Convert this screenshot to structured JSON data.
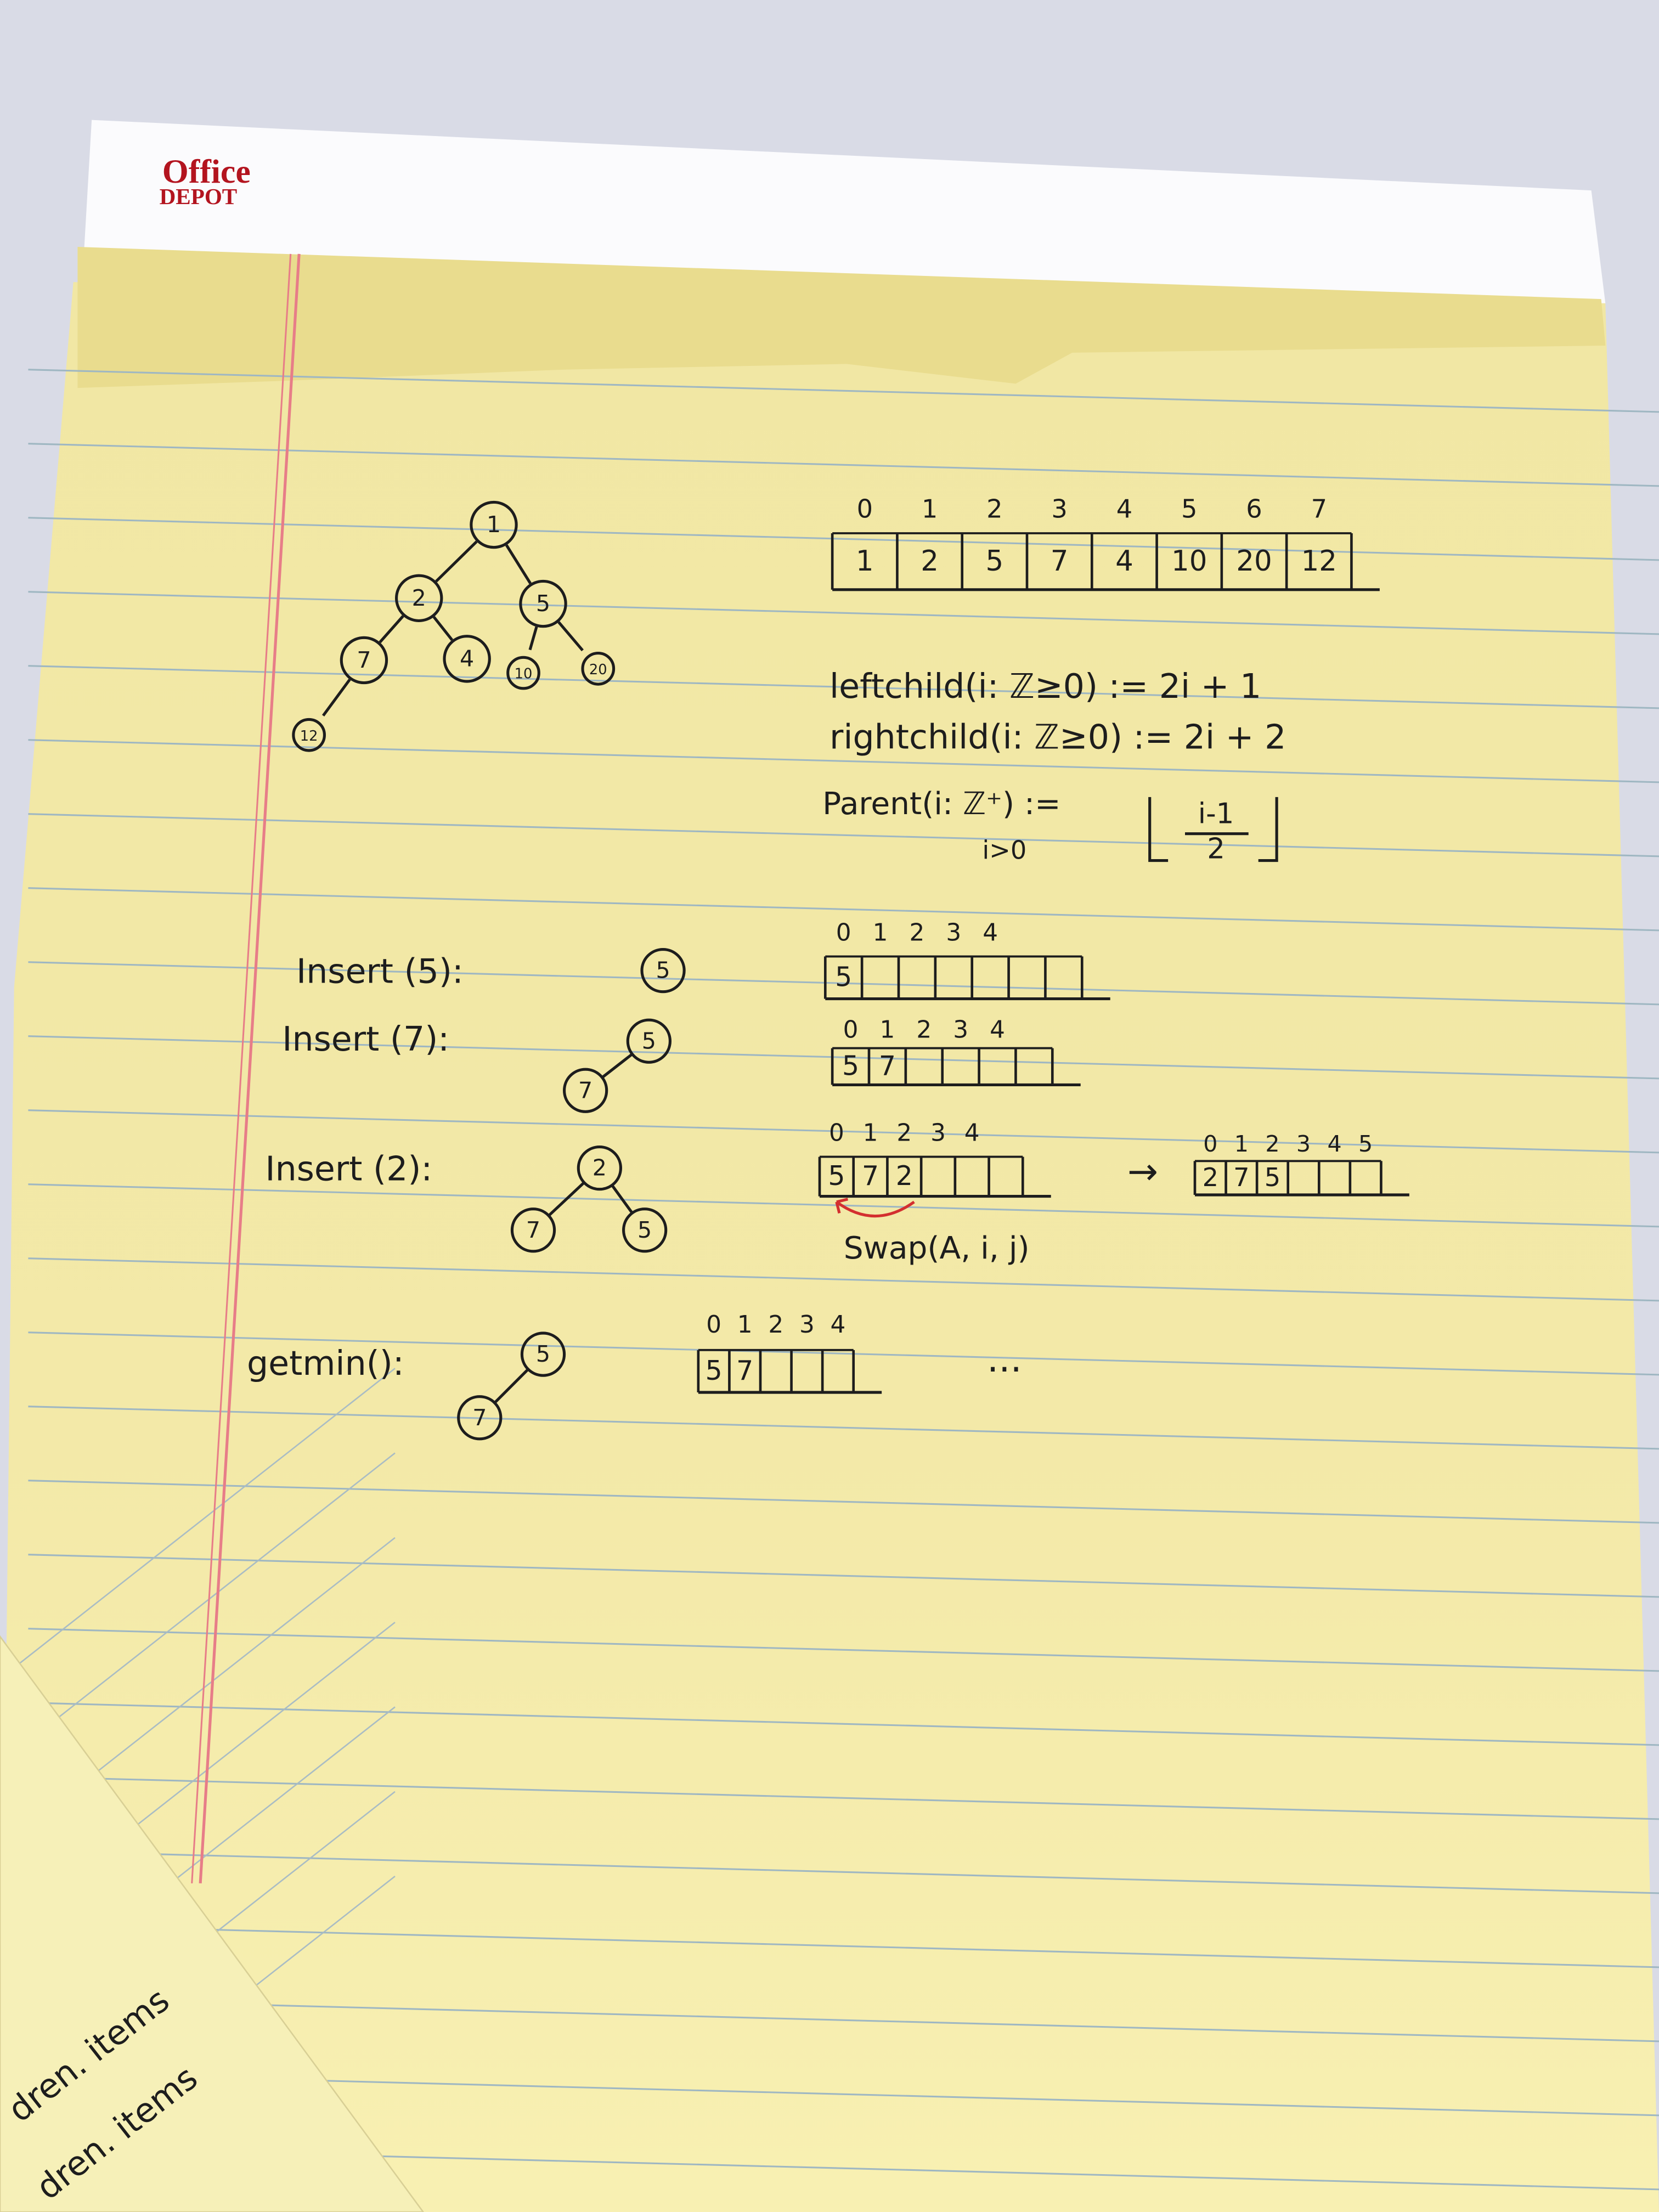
{
  "brand": {
    "line1": "Office",
    "line2": "DEPOT"
  },
  "tree": {
    "nodes": [
      "1",
      "2",
      "5",
      "7",
      "4",
      "10",
      "20",
      "12"
    ]
  },
  "array": {
    "indices": [
      "0",
      "1",
      "2",
      "3",
      "4",
      "5",
      "6",
      "7"
    ],
    "cells": [
      "1",
      "2",
      "5",
      "7",
      "4",
      "10",
      "20",
      "12"
    ]
  },
  "formulas": {
    "left": "leftchild(i: ℤ≥0) := 2i + 1",
    "right": "rightchild(i: ℤ≥0) := 2i + 2",
    "parent": "Parent(i: ℤ⁺) :=",
    "condition": "i>0",
    "numerator": "i-1",
    "denominator": "2"
  },
  "steps": [
    {
      "label": "Insert (5):",
      "nodes": [
        "5"
      ],
      "indices": [
        "0",
        "1",
        "2",
        "3",
        "4"
      ],
      "cells": [
        "5"
      ],
      "cell_colors": [
        "#222"
      ]
    },
    {
      "label": "Insert (7):",
      "nodes": [
        "5",
        "7"
      ],
      "indices": [
        "0",
        "1",
        "2",
        "3",
        "4"
      ],
      "cells": [
        "5",
        "7"
      ],
      "cell_colors": [
        "#222",
        "#222"
      ]
    },
    {
      "label": "Insert (2):",
      "nodes": [
        "2",
        "7",
        "5"
      ],
      "indices": [
        "0",
        "1",
        "2",
        "3",
        "4"
      ],
      "cells": [
        "5",
        "7",
        "2"
      ],
      "cell_colors": [
        "#222",
        "#222",
        "#d32f2f"
      ],
      "arrow": "→",
      "note": "Swap(A, i, j)",
      "result": {
        "indices": [
          "0",
          "1",
          "2",
          "3",
          "4",
          "5"
        ],
        "cells": [
          "2",
          "7",
          "5"
        ]
      }
    },
    {
      "label": "getmin():",
      "nodes": [
        "5",
        "7"
      ],
      "indices": [
        "0",
        "1",
        "2",
        "3",
        "4"
      ],
      "cells": [
        "5",
        "7"
      ],
      "cell_colors": [
        "#d32f2f",
        "#222"
      ],
      "ellipsis": "..."
    }
  ],
  "other_sheet": [
    "dren. items",
    "dren. items"
  ]
}
